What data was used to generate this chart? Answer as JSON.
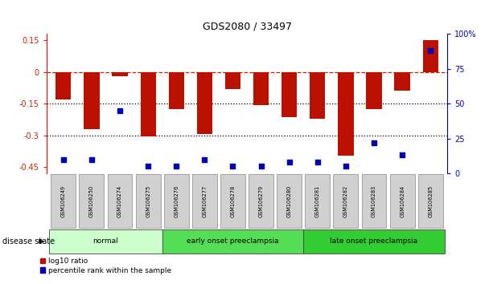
{
  "title": "GDS2080 / 33497",
  "samples": [
    "GSM106249",
    "GSM106250",
    "GSM106274",
    "GSM106275",
    "GSM106276",
    "GSM106277",
    "GSM106278",
    "GSM106279",
    "GSM106280",
    "GSM106281",
    "GSM106282",
    "GSM106283",
    "GSM106284",
    "GSM106285"
  ],
  "log10_ratio": [
    -0.13,
    -0.27,
    -0.02,
    -0.305,
    -0.175,
    -0.295,
    -0.08,
    -0.155,
    -0.215,
    -0.22,
    -0.395,
    -0.175,
    -0.09,
    0.15
  ],
  "percentile_rank": [
    10,
    10,
    45,
    5,
    5,
    10,
    5,
    5,
    8,
    8,
    5,
    22,
    13,
    88
  ],
  "groups": [
    {
      "label": "normal",
      "start": 0,
      "end": 3,
      "color": "#ccffcc"
    },
    {
      "label": "early onset preeclampsia",
      "start": 4,
      "end": 8,
      "color": "#55dd55"
    },
    {
      "label": "late onset preeclampsia",
      "start": 9,
      "end": 13,
      "color": "#33cc33"
    }
  ],
  "bar_color": "#bb1100",
  "dot_color": "#0000bb",
  "dashed_line_color": "#cc2200",
  "dotted_line_color": "#000000",
  "ylim_left": [
    -0.48,
    0.18
  ],
  "ylim_right": [
    0,
    100
  ],
  "yticks_left": [
    0.15,
    0,
    -0.15,
    -0.3,
    -0.45
  ],
  "yticks_right": [
    100,
    75,
    50,
    25,
    0
  ],
  "disease_state_label": "disease state"
}
